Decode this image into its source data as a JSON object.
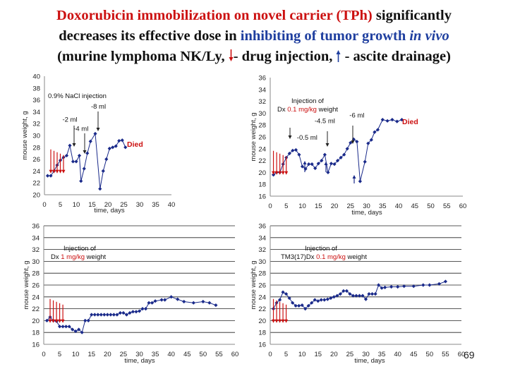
{
  "title": {
    "line1_a": "Doxorubicin immobilization on novel carrier (TPh)",
    "line1_b": " significantly",
    "line2_a": "decreases its effective dose in ",
    "line2_b": "inhibiting of tumor growth ",
    "line2_c": "in vivo",
    "line3_a": "(murine lymphoma NK/Ly,",
    "line3_b": "- drug injection,",
    "line3_c": "- ascite drainage)"
  },
  "colors": {
    "title_red": "#cc1111",
    "title_blue": "#1f3f9f",
    "series": "#1a2a8a",
    "annotation_red": "#cc1111"
  },
  "slide_number": "69",
  "chart_data": [
    {
      "type": "scatter",
      "ylabel": "mouse weight, g",
      "xlabel": "time, days",
      "xlim": [
        0,
        40
      ],
      "ylim": [
        20,
        40
      ],
      "xticks": [
        0,
        5,
        10,
        15,
        20,
        25,
        30,
        35,
        40
      ],
      "yticks": [
        20,
        22,
        24,
        26,
        28,
        30,
        32,
        34,
        36,
        38,
        40
      ],
      "grid": false,
      "label": "0.9% NaCl injection",
      "died_text": "Died",
      "points": [
        [
          1,
          23.2
        ],
        [
          2,
          23.2
        ],
        [
          3,
          24
        ],
        [
          4,
          25
        ],
        [
          5,
          25.8
        ],
        [
          6,
          26.3
        ],
        [
          7,
          26.6
        ],
        [
          8,
          28.3
        ],
        [
          9,
          25.6
        ],
        [
          10,
          25.6
        ],
        [
          11,
          26.6
        ],
        [
          11.5,
          22.3
        ],
        [
          12.5,
          24.4
        ],
        [
          13.5,
          27
        ],
        [
          14.5,
          29
        ],
        [
          16,
          30.3
        ],
        [
          17.5,
          21
        ],
        [
          18.5,
          24
        ],
        [
          19.5,
          26
        ],
        [
          20.5,
          27.8
        ],
        [
          21.5,
          28
        ],
        [
          22.5,
          28.2
        ],
        [
          23.5,
          29.1
        ],
        [
          24.5,
          29.2
        ],
        [
          25.5,
          28
        ]
      ],
      "annotations": [
        {
          "text": "-8 ml",
          "x": 17,
          "y": 34.5
        },
        {
          "text": "-2 ml",
          "x": 8,
          "y": 32.3
        },
        {
          "text": "-4 ml",
          "x": 11.5,
          "y": 30.8
        }
      ],
      "injections": [
        2,
        3,
        4,
        5,
        6
      ],
      "drainage_arrows": [
        [
          11,
          29.5
        ],
        [
          16,
          31
        ],
        [
          16.8,
          33.8
        ]
      ]
    },
    {
      "type": "scatter",
      "ylabel": "mouse weight, g",
      "xlabel": "time, days",
      "xlim": [
        0,
        60
      ],
      "ylim": [
        16,
        36
      ],
      "xticks": [
        0,
        5,
        10,
        15,
        20,
        25,
        30,
        35,
        40,
        45,
        50,
        55,
        60
      ],
      "yticks": [
        16,
        18,
        20,
        22,
        24,
        26,
        28,
        30,
        32,
        34,
        36
      ],
      "grid": false,
      "label_a": "Injection of",
      "label_b": "Dx ",
      "label_c": "0.1 mg/kg",
      "label_d": " weight",
      "died_text": "Died",
      "points": [
        [
          1,
          19.6
        ],
        [
          2,
          20
        ],
        [
          3,
          20
        ],
        [
          4,
          21.4
        ],
        [
          5,
          22.5
        ],
        [
          6,
          23.2
        ],
        [
          7,
          23.7
        ],
        [
          8,
          23.8
        ],
        [
          9,
          23
        ],
        [
          10,
          21
        ],
        [
          11,
          20.6
        ],
        [
          12,
          21.4
        ],
        [
          13,
          21.4
        ],
        [
          14,
          20.7
        ],
        [
          15,
          21.5
        ],
        [
          16,
          22
        ],
        [
          17,
          23
        ],
        [
          18,
          20
        ],
        [
          19,
          21.5
        ],
        [
          20,
          21.4
        ],
        [
          21,
          22
        ],
        [
          22,
          22.5
        ],
        [
          23,
          23
        ],
        [
          24,
          24
        ],
        [
          25,
          25
        ],
        [
          26,
          25.6
        ],
        [
          27,
          25.2
        ],
        [
          28,
          18.5
        ],
        [
          29.5,
          21.8
        ],
        [
          30.5,
          24.9
        ],
        [
          31.5,
          25.5
        ],
        [
          32.5,
          26.8
        ],
        [
          33.5,
          27.2
        ],
        [
          35,
          28.9
        ],
        [
          36.5,
          28.7
        ],
        [
          38,
          28.9
        ],
        [
          39.5,
          28.6
        ],
        [
          41,
          28.9
        ]
      ],
      "annotations": [
        {
          "text": "-6 ml",
          "x": 27,
          "y": 29.3
        },
        {
          "text": "-4.5 ml",
          "x": 17,
          "y": 28.3
        },
        {
          "text": "-0.5 ml",
          "x": 11.5,
          "y": 25.5
        }
      ],
      "injections": [
        1,
        2,
        3,
        4,
        5
      ],
      "drainage_arrows": [
        [
          10,
          23
        ],
        [
          18,
          27.5
        ],
        [
          28,
          28.5
        ]
      ]
    },
    {
      "type": "scatter",
      "ylabel": "mouse weight, g",
      "xlabel": "time, days",
      "xlim": [
        0,
        60
      ],
      "ylim": [
        16,
        36
      ],
      "xticks": [
        0,
        5,
        10,
        15,
        20,
        25,
        30,
        35,
        40,
        45,
        50,
        55,
        60
      ],
      "yticks": [
        16,
        18,
        20,
        22,
        24,
        26,
        28,
        30,
        32,
        34,
        36
      ],
      "grid": true,
      "label_a": "Injection of",
      "label_b": "Dx ",
      "label_c": "1 mg/kg",
      "label_d": " weight",
      "points": [
        [
          1,
          20
        ],
        [
          2,
          20.6
        ],
        [
          3,
          20
        ],
        [
          4,
          19.9
        ],
        [
          5,
          19
        ],
        [
          6,
          19
        ],
        [
          7,
          19
        ],
        [
          8,
          19
        ],
        [
          9,
          18.5
        ],
        [
          10,
          18.2
        ],
        [
          11,
          18.5
        ],
        [
          12,
          18
        ],
        [
          13,
          20
        ],
        [
          14,
          20
        ],
        [
          15,
          21
        ],
        [
          16,
          21
        ],
        [
          17,
          21
        ],
        [
          18,
          21
        ],
        [
          19,
          21
        ],
        [
          20,
          21
        ],
        [
          21,
          21
        ],
        [
          22,
          21
        ],
        [
          23,
          21
        ],
        [
          24,
          21.3
        ],
        [
          25,
          21.3
        ],
        [
          26,
          21
        ],
        [
          27,
          21.3
        ],
        [
          28,
          21.5
        ],
        [
          29,
          21.5
        ],
        [
          30,
          21.6
        ],
        [
          31,
          22
        ],
        [
          32,
          22
        ],
        [
          33,
          23
        ],
        [
          34,
          23
        ],
        [
          35,
          23.3
        ],
        [
          37,
          23.5
        ],
        [
          38,
          23.5
        ],
        [
          40,
          24
        ],
        [
          42,
          23.6
        ],
        [
          44,
          23.2
        ],
        [
          47,
          23
        ],
        [
          50,
          23.2
        ],
        [
          52,
          23
        ],
        [
          54,
          22.6
        ]
      ],
      "injections": [
        2,
        3,
        4,
        5,
        6
      ]
    },
    {
      "type": "scatter",
      "ylabel": "mouse weight, g",
      "xlabel": "time, days",
      "xlim": [
        0,
        60
      ],
      "ylim": [
        16,
        36
      ],
      "xticks": [
        0,
        5,
        10,
        15,
        20,
        25,
        30,
        35,
        40,
        45,
        50,
        55,
        60
      ],
      "yticks": [
        16,
        18,
        20,
        22,
        24,
        26,
        28,
        30,
        32,
        34,
        36
      ],
      "grid": true,
      "label_a": "Injection of",
      "label_b": "TM3(17)Dx ",
      "label_c": "0.1 mg/kg",
      "label_d": " weight",
      "points": [
        [
          1,
          22
        ],
        [
          2,
          23
        ],
        [
          3,
          23.5
        ],
        [
          4,
          24.8
        ],
        [
          5,
          24.5
        ],
        [
          6,
          23.8
        ],
        [
          7,
          23
        ],
        [
          8,
          22.5
        ],
        [
          9,
          22.5
        ],
        [
          10,
          22.6
        ],
        [
          11,
          22
        ],
        [
          12,
          22.5
        ],
        [
          13,
          23
        ],
        [
          14,
          23.5
        ],
        [
          15,
          23.3
        ],
        [
          16,
          23.5
        ],
        [
          17,
          23.5
        ],
        [
          18,
          23.6
        ],
        [
          19,
          23.8
        ],
        [
          20,
          24
        ],
        [
          21,
          24.2
        ],
        [
          22,
          24.5
        ],
        [
          23,
          25
        ],
        [
          24,
          25
        ],
        [
          25,
          24.5
        ],
        [
          26,
          24.2
        ],
        [
          27,
          24.2
        ],
        [
          28,
          24.2
        ],
        [
          29,
          24.2
        ],
        [
          30,
          23.6
        ],
        [
          31,
          24.5
        ],
        [
          32,
          24.5
        ],
        [
          33,
          24.5
        ],
        [
          34,
          26
        ],
        [
          35,
          25.5
        ],
        [
          36,
          25.6
        ],
        [
          38,
          25.7
        ],
        [
          40,
          25.7
        ],
        [
          42,
          25.8
        ],
        [
          45,
          25.8
        ],
        [
          48,
          26
        ],
        [
          50,
          26
        ],
        [
          53,
          26.2
        ],
        [
          55,
          26.6
        ]
      ],
      "injections": [
        1,
        2,
        3,
        4,
        5
      ]
    }
  ]
}
